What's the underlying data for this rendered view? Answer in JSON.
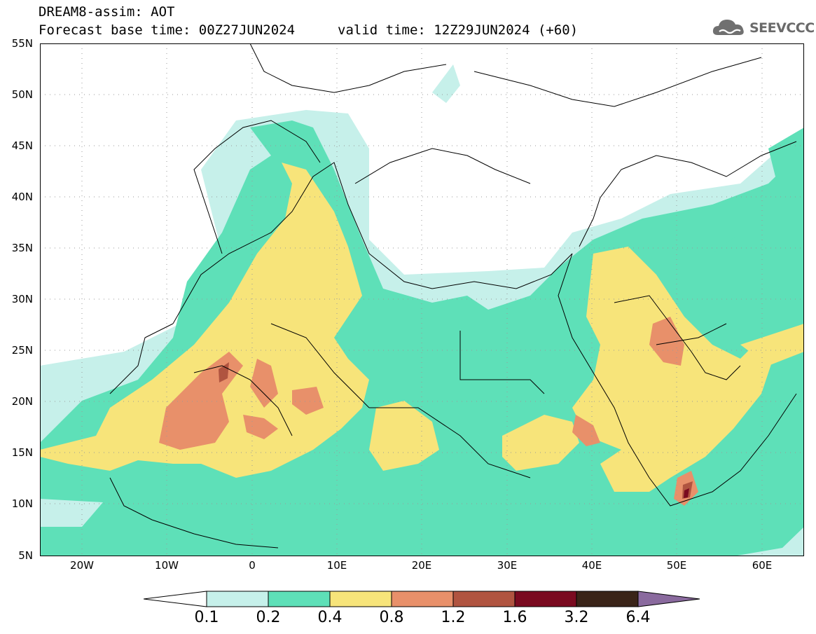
{
  "header": {
    "title": "DREAM8-assim: AOT",
    "base_time": "Forecast base time: 00Z27JUN2024",
    "valid_time": "valid time: 12Z29JUN2024 (+60)",
    "logo_text": "SEEVCCC"
  },
  "map": {
    "extent": {
      "lon_min": -25,
      "lon_max": 65,
      "lat_min": 5,
      "lat_max": 55
    },
    "lat_labels": [
      "55N",
      "50N",
      "45N",
      "40N",
      "35N",
      "30N",
      "25N",
      "20N",
      "15N",
      "10N",
      "5N"
    ],
    "lon_labels": [
      "20W",
      "10W",
      "0",
      "10E",
      "20E",
      "30E",
      "40E",
      "50E",
      "60E"
    ]
  },
  "colorbar": {
    "labels": [
      "0.1",
      "0.2",
      "0.4",
      "0.8",
      "1.2",
      "1.6",
      "3.2",
      "6.4"
    ],
    "colors": [
      "#c6f0ea",
      "#5ee0b8",
      "#f7e47a",
      "#e8906a",
      "#b05440",
      "#7a0a20",
      "#3a2418",
      "#8a6a9e"
    ]
  }
}
